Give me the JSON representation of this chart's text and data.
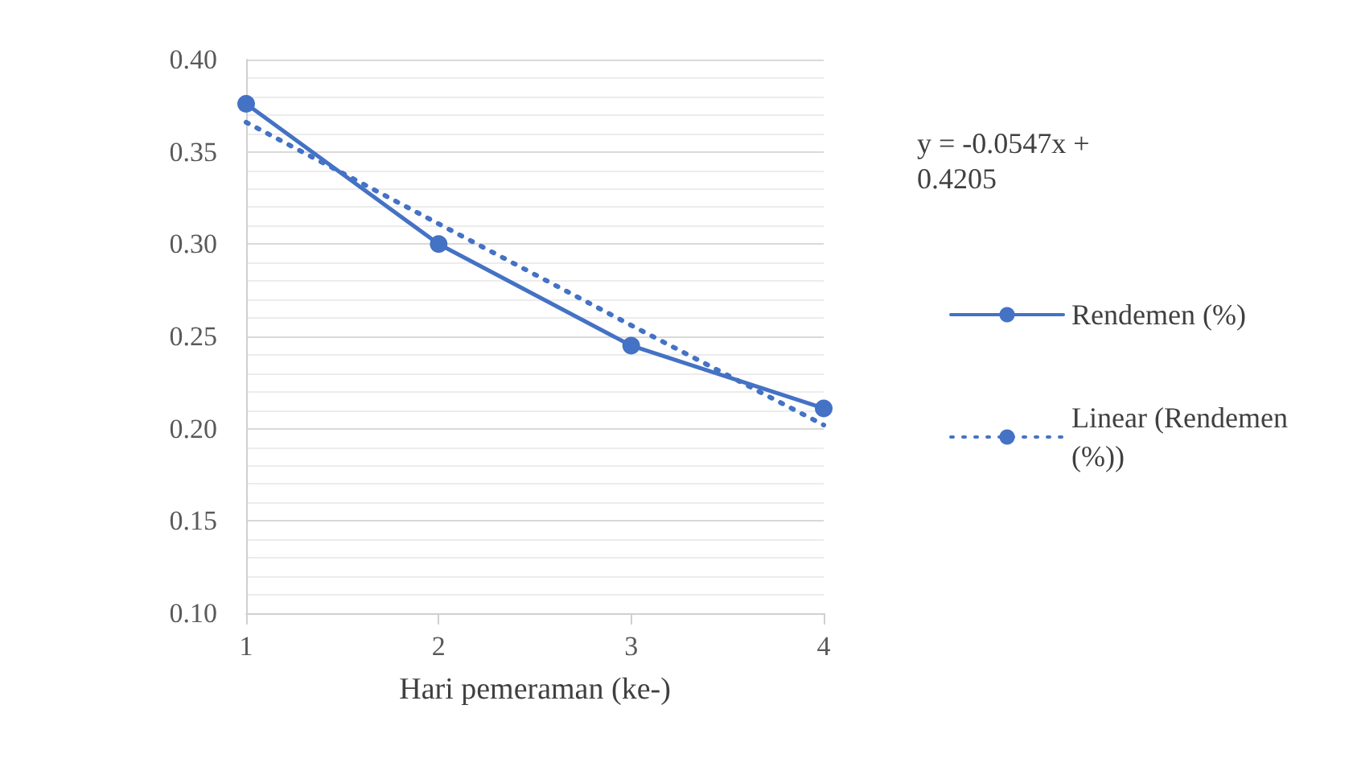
{
  "chart_data": {
    "type": "line",
    "xlabel": "Hari pemeraman (ke-)",
    "x": [
      1,
      2,
      3,
      4
    ],
    "xlim": [
      1,
      4
    ],
    "xticks": [
      1,
      2,
      3,
      4
    ],
    "ylim": [
      0.1,
      0.4
    ],
    "yticks": [
      {
        "value": 0.1,
        "label": "0.10"
      },
      0.15,
      {
        "value": 0.2,
        "label": "0.20"
      },
      0.25,
      {
        "value": 0.3,
        "label": "0.30"
      },
      0.35,
      {
        "value": 0.4,
        "label": "0.40"
      }
    ],
    "grid": "y",
    "legend": "right",
    "series": [
      {
        "name": "Rendemen (%)",
        "color": "#4472c4",
        "values": [
          0.376,
          0.3,
          0.245,
          0.211
        ],
        "marker": "circle",
        "line_style": "solid"
      },
      {
        "name": "Linear (Rendemen (%))",
        "color": "#4472c4",
        "values": [
          0.366,
          0.311,
          0.256,
          0.202
        ],
        "marker": "none",
        "line_style": "dotted"
      }
    ],
    "annotations": [
      "y = -0.0547x + 0.4205"
    ]
  }
}
